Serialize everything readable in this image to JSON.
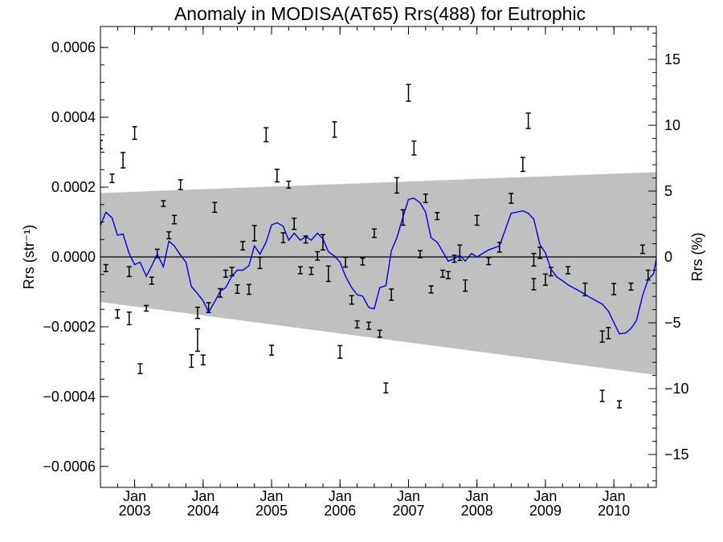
{
  "chart_data": {
    "type": "line",
    "title": "Anomaly in MODISA(AT65) Rrs(488) for Eutrophic",
    "ylabel_left": "Rrs (str⁻¹)",
    "ylabel_right": "Rrs (%)",
    "xlim": [
      2002.5,
      2010.62
    ],
    "ylim": [
      -0.00066,
      0.00066
    ],
    "ylim_right": [
      -17.5,
      17.5
    ],
    "y_ticks": [
      {
        "value": 0.0006,
        "label": "0.0006"
      },
      {
        "value": 0.0004,
        "label": "0.0004"
      },
      {
        "value": 0.0002,
        "label": "0.0002"
      },
      {
        "value": 0.0,
        "label": "0.0000"
      },
      {
        "value": -0.0002,
        "label": "−0.0002"
      },
      {
        "value": -0.0004,
        "label": "−0.0004"
      },
      {
        "value": -0.0006,
        "label": "−0.0006"
      }
    ],
    "y_ticks_right": [
      {
        "value": 15,
        "label": "15"
      },
      {
        "value": 10,
        "label": "10"
      },
      {
        "value": 5,
        "label": "5"
      },
      {
        "value": 0,
        "label": "0"
      },
      {
        "value": -5,
        "label": "−5"
      },
      {
        "value": -10,
        "label": "−10"
      },
      {
        "value": -15,
        "label": "−15"
      }
    ],
    "x_ticks": [
      {
        "value": 2003,
        "month": "Jan",
        "year": "2003"
      },
      {
        "value": 2004,
        "month": "Jan",
        "year": "2004"
      },
      {
        "value": 2005,
        "month": "Jan",
        "year": "2005"
      },
      {
        "value": 2006,
        "month": "Jan",
        "year": "2006"
      },
      {
        "value": 2007,
        "month": "Jan",
        "year": "2007"
      },
      {
        "value": 2008,
        "month": "Jan",
        "year": "2008"
      },
      {
        "value": 2009,
        "month": "Jan",
        "year": "2009"
      },
      {
        "value": 2010,
        "month": "Jan",
        "year": "2010"
      }
    ],
    "zero_line": true,
    "band": {
      "color": "#c0c0c0",
      "upper": [
        [
          2002.5,
          0.000183
        ],
        [
          2010.62,
          0.000243
        ]
      ],
      "lower": [
        [
          2002.5,
          -0.000129
        ],
        [
          2010.62,
          -0.000338
        ]
      ]
    },
    "series": [
      {
        "color": "#0000dd",
        "x": [
          2002.5,
          2002.58,
          2002.67,
          2002.75,
          2002.83,
          2002.92,
          2003.0,
          2003.08,
          2003.17,
          2003.25,
          2003.33,
          2003.42,
          2003.5,
          2003.58,
          2003.67,
          2003.75,
          2003.83,
          2003.92,
          2004.0,
          2004.08,
          2004.17,
          2004.25,
          2004.33,
          2004.42,
          2004.5,
          2004.58,
          2004.67,
          2004.75,
          2004.83,
          2004.92,
          2005.0,
          2005.08,
          2005.17,
          2005.25,
          2005.33,
          2005.42,
          2005.5,
          2005.58,
          2005.67,
          2005.75,
          2005.83,
          2005.92,
          2006.0,
          2006.08,
          2006.17,
          2006.25,
          2006.33,
          2006.42,
          2006.5,
          2006.58,
          2006.67,
          2006.75,
          2006.83,
          2006.92,
          2007.0,
          2007.08,
          2007.17,
          2007.25,
          2007.33,
          2007.42,
          2007.5,
          2007.58,
          2007.67,
          2007.75,
          2007.83,
          2007.92,
          2008.0,
          2008.17,
          2008.33,
          2008.5,
          2008.67,
          2008.75,
          2008.83,
          2008.92,
          2009.0,
          2009.08,
          2009.17,
          2009.25,
          2009.33,
          2009.5,
          2009.67,
          2009.83,
          2009.92,
          2010.0,
          2010.08,
          2010.17,
          2010.25,
          2010.33,
          2010.42,
          2010.5,
          2010.58,
          2010.62
        ],
        "y": [
          9e-05,
          0.000128,
          0.000112,
          6.2e-05,
          6.6e-05,
          1e-05,
          -2.2e-05,
          -1.5e-05,
          -5.5e-05,
          -2.5e-05,
          8e-06,
          -2.8e-05,
          4.5e-05,
          3.2e-05,
          5e-06,
          -1.5e-05,
          -8.5e-05,
          -0.000105,
          -0.000125,
          -0.000158,
          -0.000128,
          -9.8e-05,
          -8.8e-05,
          -5.5e-05,
          -3.8e-05,
          -3.8e-05,
          -2.5e-05,
          3.2e-05,
          8e-06,
          4.2e-05,
          9.2e-05,
          9.8e-05,
          8.8e-05,
          4.8e-05,
          6.8e-05,
          4.8e-05,
          5.8e-05,
          4.8e-05,
          6.8e-05,
          5.2e-05,
          1.5e-05,
          2e-06,
          -1.5e-05,
          -5.5e-05,
          -8.8e-05,
          -0.000108,
          -0.000112,
          -0.000145,
          -0.000148,
          -8.8e-05,
          -8.2e-05,
          1.8e-05,
          5.5e-05,
          0.000115,
          0.000165,
          0.000168,
          0.000155,
          0.000128,
          5.5e-05,
          4.2e-05,
          1.5e-05,
          -1.2e-05,
          -5e-06,
          5e-06,
          -1.2e-05,
          1e-05,
          0.0,
          2e-05,
          3.2e-05,
          0.000125,
          0.000132,
          0.000125,
          0.000108,
          3.5e-05,
          1.2e-05,
          -3.5e-05,
          -5.8e-05,
          -6.8e-05,
          -8e-05,
          -9.8e-05,
          -0.000118,
          -0.000135,
          -0.000155,
          -0.000188,
          -0.00022,
          -0.000218,
          -0.000205,
          -0.000182,
          -0.00011,
          -6.5e-05,
          -4.8e-05,
          -5e-06
        ]
      }
    ],
    "error_bars": {
      "color": "#000000",
      "points": [
        [
          2002.5,
          0.000322,
          1.2e-05
        ],
        [
          2002.58,
          -3.2e-05,
          1e-05
        ],
        [
          2002.67,
          0.000225,
          1.2e-05
        ],
        [
          2002.75,
          -0.000163,
          1.2e-05
        ],
        [
          2002.83,
          0.000277,
          2.2e-05
        ],
        [
          2002.92,
          -4.2e-05,
          1.4e-05
        ],
        [
          2002.92,
          -0.000176,
          1.8e-05
        ],
        [
          2003.0,
          0.000355,
          1.8e-05
        ],
        [
          2003.08,
          -0.00032,
          1.4e-05
        ],
        [
          2003.17,
          -0.000147,
          8e-06
        ],
        [
          2003.25,
          -6.8e-05,
          1e-05
        ],
        [
          2003.33,
          1e-05,
          1.2e-05
        ],
        [
          2003.42,
          0.000153,
          8e-06
        ],
        [
          2003.5,
          6.2e-05,
          1e-05
        ],
        [
          2003.58,
          0.000107,
          1.2e-05
        ],
        [
          2003.67,
          0.000207,
          1.4e-05
        ],
        [
          2003.83,
          -0.000298,
          1.8e-05
        ],
        [
          2003.92,
          -0.000238,
          3.2e-05
        ],
        [
          2003.92,
          -0.00016,
          1.6e-05
        ],
        [
          2004.0,
          -0.000295,
          1.4e-05
        ],
        [
          2004.08,
          -0.000145,
          1.4e-05
        ],
        [
          2004.17,
          0.000142,
          1.4e-05
        ],
        [
          2004.25,
          -0.000103,
          1.2e-05
        ],
        [
          2004.33,
          -4.8e-05,
          1e-05
        ],
        [
          2004.42,
          -4.2e-05,
          1.2e-05
        ],
        [
          2004.5,
          -9.2e-05,
          1.2e-05
        ],
        [
          2004.58,
          3.2e-05,
          1.2e-05
        ],
        [
          2004.67,
          -9.3e-05,
          1.4e-05
        ],
        [
          2004.75,
          6.8e-05,
          2.2e-05
        ],
        [
          2004.83,
          -1.7e-05,
          1.6e-05
        ],
        [
          2004.92,
          0.00035,
          2e-05
        ],
        [
          2005.0,
          -0.000267,
          1.4e-05
        ],
        [
          2005.08,
          0.000233,
          1.8e-05
        ],
        [
          2005.17,
          5.5e-05,
          1.4e-05
        ],
        [
          2005.25,
          0.000207,
          1e-05
        ],
        [
          2005.33,
          9.5e-05,
          1.6e-05
        ],
        [
          2005.42,
          -3.8e-05,
          1e-05
        ],
        [
          2005.5,
          5e-05,
          1e-05
        ],
        [
          2005.58,
          -4e-05,
          1e-05
        ],
        [
          2005.67,
          3e-06,
          1.2e-05
        ],
        [
          2005.75,
          4.2e-05,
          2.2e-05
        ],
        [
          2005.83,
          -4.8e-05,
          2.2e-05
        ],
        [
          2005.92,
          0.000365,
          2.2e-05
        ],
        [
          2006.0,
          -0.000272,
          1.8e-05
        ],
        [
          2006.08,
          -1.5e-05,
          1.4e-05
        ],
        [
          2006.17,
          -0.000123,
          1.2e-05
        ],
        [
          2006.25,
          -0.000193,
          1e-05
        ],
        [
          2006.33,
          -1.3e-05,
          1e-05
        ],
        [
          2006.42,
          -0.000197,
          1e-05
        ],
        [
          2006.5,
          6.8e-05,
          1.2e-05
        ],
        [
          2006.58,
          -0.00022,
          1e-05
        ],
        [
          2006.67,
          -0.000375,
          1.4e-05
        ],
        [
          2006.75,
          -0.000108,
          1.6e-05
        ],
        [
          2006.83,
          0.000205,
          2.2e-05
        ],
        [
          2006.92,
          0.000113,
          2.2e-05
        ],
        [
          2007.0,
          0.00047,
          2.4e-05
        ],
        [
          2007.08,
          0.000312,
          2e-05
        ],
        [
          2007.17,
          8e-06,
          1e-05
        ],
        [
          2007.25,
          0.000168,
          1.2e-05
        ],
        [
          2007.33,
          -9.3e-05,
          1e-05
        ],
        [
          2007.42,
          0.000117,
          1e-05
        ],
        [
          2007.5,
          -4.8e-05,
          1e-05
        ],
        [
          2007.58,
          -5.2e-05,
          1e-05
        ],
        [
          2007.67,
          -5e-06,
          1e-05
        ],
        [
          2007.75,
          1.2e-05,
          2.2e-05
        ],
        [
          2007.83,
          -8.2e-05,
          1.6e-05
        ],
        [
          2008.0,
          0.000105,
          1.4e-05
        ],
        [
          2008.17,
          -1.2e-05,
          1e-05
        ],
        [
          2008.33,
          2.8e-05,
          1.4e-05
        ],
        [
          2008.5,
          0.000168,
          1.4e-05
        ],
        [
          2008.67,
          0.000265,
          2e-05
        ],
        [
          2008.75,
          0.00039,
          2.2e-05
        ],
        [
          2008.83,
          -8e-06,
          1.8e-05
        ],
        [
          2008.83,
          -7.8e-05,
          1.6e-05
        ],
        [
          2008.92,
          1.2e-05,
          1.6e-05
        ],
        [
          2009.0,
          -6.5e-05,
          1.6e-05
        ],
        [
          2009.08,
          -4.2e-05,
          1.2e-05
        ],
        [
          2009.33,
          -3.8e-05,
          1e-05
        ],
        [
          2009.58,
          -9.3e-05,
          1.8e-05
        ],
        [
          2009.83,
          -0.000228,
          1.6e-05
        ],
        [
          2009.83,
          -0.000398,
          1.6e-05
        ],
        [
          2009.92,
          -0.000218,
          1.6e-05
        ],
        [
          2010.0,
          -9.2e-05,
          1.6e-05
        ],
        [
          2010.08,
          -0.000422,
          1e-05
        ],
        [
          2010.25,
          -8.5e-05,
          1e-05
        ],
        [
          2010.42,
          2.2e-05,
          1.2e-05
        ],
        [
          2010.5,
          -5.2e-05,
          1.4e-05
        ]
      ]
    }
  }
}
